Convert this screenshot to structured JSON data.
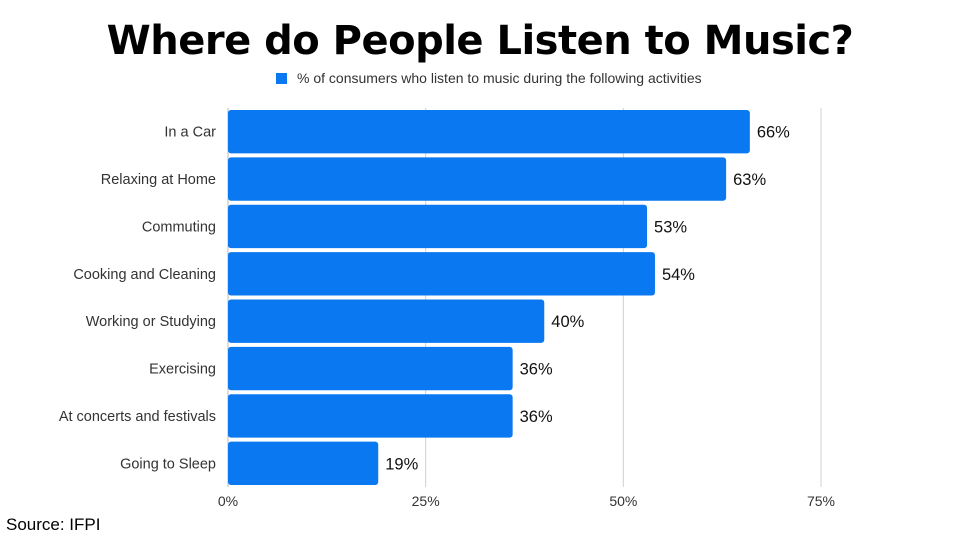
{
  "title": "Where do People Listen to Music?",
  "source": "Source: IFPI",
  "colors": {
    "bar": "#0A78F0",
    "grid": "#d0d0d0",
    "text": "#333333",
    "value_text": "#111111"
  },
  "chart_data": {
    "type": "bar",
    "orientation": "horizontal",
    "title": "Where do People Listen to Music?",
    "categories": [
      "In a Car",
      "Relaxing at Home",
      "Commuting",
      "Cooking and Cleaning",
      "Working or Studying",
      "Exercising",
      "At concerts and festivals",
      "Going to Sleep"
    ],
    "series": [
      {
        "name": "% of consumers who listen to music during the following activities",
        "values": [
          66,
          63,
          53,
          54,
          40,
          36,
          36,
          19
        ],
        "labels": [
          "66%",
          "63%",
          "53%",
          "54%",
          "40%",
          "36%",
          "36%",
          "19%"
        ]
      }
    ],
    "xlim": [
      0,
      75
    ],
    "xticks": [
      0,
      25,
      50,
      75
    ],
    "xtick_labels": [
      "0%",
      "25%",
      "50%",
      "75%"
    ],
    "grid": true,
    "legend_position": "top-center"
  }
}
